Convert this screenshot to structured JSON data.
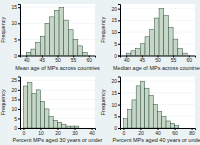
{
  "chart_data": [
    {
      "type": "histogram",
      "xlabel": "Mean age of MPs across countries",
      "ylabel": "Frequency",
      "bins": [
        40,
        41.5,
        43,
        44.5,
        46,
        47.5,
        49,
        50.5,
        52,
        53.5,
        55,
        56.5,
        58,
        59.5
      ],
      "counts": [
        1,
        2,
        4,
        6,
        10,
        12,
        14,
        15,
        11,
        8,
        5,
        3,
        1
      ],
      "color": "#c7d7c7",
      "xlim": [
        38,
        62
      ],
      "xticks": [
        40,
        45,
        50,
        55,
        60
      ],
      "ylim": [
        0,
        16
      ],
      "yticks": [
        0,
        5,
        10,
        15
      ]
    },
    {
      "type": "histogram",
      "xlabel": "Median age of MPs across countries",
      "ylabel": "Frequency",
      "bins": [
        40,
        41.5,
        43,
        44.5,
        46,
        47.5,
        49,
        50.5,
        52,
        53.5,
        55,
        56.5,
        58,
        59.5
      ],
      "counts": [
        1,
        2,
        3,
        5,
        8,
        11,
        16,
        20,
        17,
        12,
        7,
        3,
        1
      ],
      "color": "#c7d7c7",
      "xlim": [
        38,
        62
      ],
      "xticks": [
        40,
        45,
        50,
        55,
        60
      ],
      "ylim": [
        0,
        22
      ],
      "yticks": [
        0,
        5,
        10,
        15,
        20
      ]
    },
    {
      "type": "histogram",
      "xlabel": "Percent MPs aged 30 years or under",
      "ylabel": "Frequency",
      "bins": [
        0,
        2.5,
        5,
        7.5,
        10,
        12.5,
        15,
        17.5,
        20,
        22.5,
        25,
        27.5,
        30,
        32.5
      ],
      "counts": [
        22,
        24,
        18,
        20,
        14,
        10,
        6,
        4,
        3,
        2,
        1,
        1,
        1
      ],
      "color": "#c7d7c7",
      "xlim": [
        -2,
        42
      ],
      "xticks": [
        0,
        10,
        20,
        30,
        40
      ],
      "ylim": [
        0,
        27
      ],
      "yticks": [
        0,
        5,
        10,
        15,
        20,
        25
      ]
    },
    {
      "type": "histogram",
      "xlabel": "Percent MPs aged 40 years or under",
      "ylabel": "Frequency",
      "bins": [
        0,
        5,
        10,
        15,
        20,
        25,
        30,
        35,
        40,
        45,
        50,
        55,
        60,
        65
      ],
      "counts": [
        4,
        8,
        12,
        18,
        20,
        17,
        14,
        10,
        7,
        5,
        3,
        2,
        1
      ],
      "color": "#c7d7c7",
      "xlim": [
        -4,
        84
      ],
      "xticks": [
        0,
        20,
        40,
        60,
        80
      ],
      "ylim": [
        0,
        22
      ],
      "yticks": [
        0,
        5,
        10,
        15,
        20
      ]
    }
  ]
}
